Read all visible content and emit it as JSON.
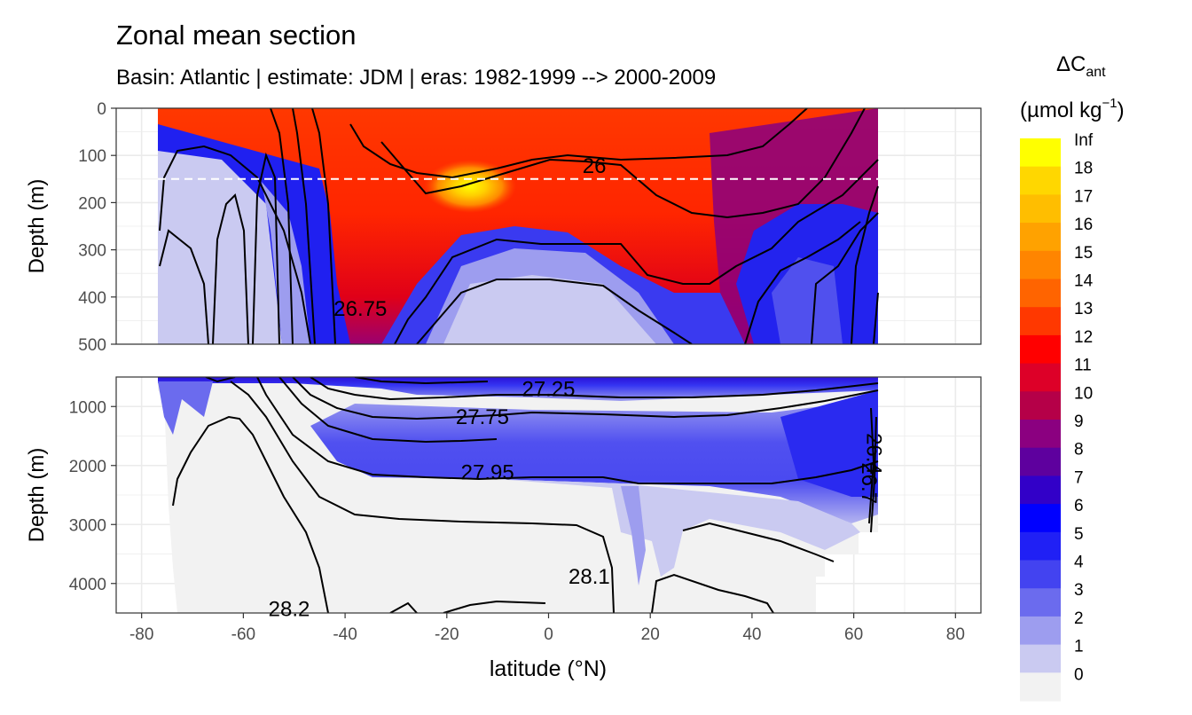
{
  "chart_data": {
    "type": "heatmap",
    "title": "Zonal mean section",
    "subtitle": "Basin: Atlantic | estimate: JDM  | eras: 1982-1999 --> 2000-2009",
    "xlabel": "latitude (°N)",
    "ylabel": "Depth (m)",
    "xlim": [
      -85,
      85
    ],
    "x_ticks": [
      "-80",
      "-60",
      "-40",
      "-20",
      "0",
      "20",
      "40",
      "60",
      "80"
    ],
    "panels": [
      {
        "name": "upper",
        "ylim": [
          0,
          500
        ],
        "y_ticks": [
          "0",
          "100",
          "200",
          "300",
          "400",
          "500"
        ]
      },
      {
        "name": "lower",
        "ylim": [
          500,
          4500
        ],
        "y_ticks": [
          "1000",
          "2000",
          "3000",
          "4000"
        ]
      }
    ],
    "reference_depth": 150,
    "legend": {
      "title_main": "ΔC",
      "title_sub": "ant",
      "unit_main": "(µmol kg",
      "unit_sup": "−1",
      "unit_end": ")",
      "placement": "right",
      "labels": [
        "Inf",
        "18",
        "17",
        "16",
        "15",
        "14",
        "13",
        "12",
        "11",
        "10",
        "9",
        "8",
        "7",
        "6",
        "5",
        "4",
        "3",
        "2",
        "1",
        "0"
      ],
      "colors": [
        "#ffff00",
        "#ffd700",
        "#ffbe00",
        "#ffa200",
        "#ff8500",
        "#ff6400",
        "#ff3800",
        "#ff0000",
        "#dd0028",
        "#b50048",
        "#8b0080",
        "#5e009e",
        "#3200c8",
        "#0000ff",
        "#2020f5",
        "#4343f0",
        "#6b6bee",
        "#9d9def",
        "#cacaf1",
        "#f2f2f2"
      ]
    },
    "contour_labels": [
      {
        "text": "26",
        "lat": 9,
        "depth": 122
      },
      {
        "text": "26.75",
        "lat": -37,
        "depth": 425
      },
      {
        "text": "27.25",
        "lat": 0,
        "depth": 700
      },
      {
        "text": "27.75",
        "lat": -13,
        "depth": 1180
      },
      {
        "text": "27.95",
        "lat": -12,
        "depth": 2120
      },
      {
        "text": "28.1",
        "lat": 8,
        "depth": 3880
      },
      {
        "text": "28.2",
        "lat": -51,
        "depth": 4430
      },
      {
        "text": "26.7",
        "lat": 63,
        "depth": 2300
      },
      {
        "text": "26.4",
        "lat": 64,
        "depth": 1800
      }
    ]
  }
}
